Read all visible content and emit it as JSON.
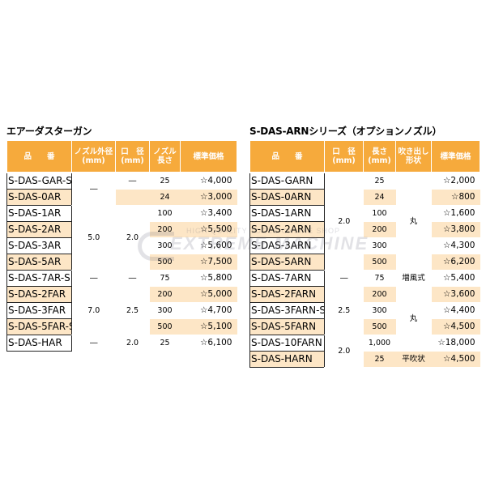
{
  "left": {
    "title": "エアーダスターガン",
    "headers": [
      "品　　番",
      "ノズル外径(mm)",
      "口　径(mm)",
      "ノズル長さ",
      "標準価格"
    ],
    "rows": [
      {
        "model": "S-DAS-GAR-S",
        "price": "☆4,000"
      },
      {
        "model": "S-DAS-0AR",
        "price": "☆3,000"
      },
      {
        "model": "S-DAS-1AR",
        "price": "☆3,400"
      },
      {
        "model": "S-DAS-2AR",
        "price": "☆5,500"
      },
      {
        "model": "S-DAS-3AR",
        "price": "☆5,600"
      },
      {
        "model": "S-DAS-5AR",
        "price": "☆7,500"
      },
      {
        "model": "S-DAS-7AR-S",
        "price": "☆5,800"
      },
      {
        "model": "S-DAS-2FAR",
        "price": "☆5,000"
      },
      {
        "model": "S-DAS-3FAR",
        "price": "☆4,700"
      },
      {
        "model": "S-DAS-5FAR-S",
        "price": "☆5,100"
      },
      {
        "model": "S-DAS-HAR",
        "price": "☆6,100"
      }
    ],
    "outer_dia": {
      "r0": "―",
      "r2": "5.0",
      "r6": "―",
      "r8": "7.0",
      "r10": "―"
    },
    "bore": {
      "r0": "―",
      "r3": "2.0",
      "r6": "―",
      "r8": "2.5",
      "r10": "2.0"
    },
    "length": [
      "25",
      "24",
      "100",
      "200",
      "300",
      "500",
      "75",
      "200",
      "300",
      "500",
      "25"
    ]
  },
  "right": {
    "title": "S-DAS-ARNシリーズ（オプションノズル）",
    "headers": [
      "品　　番",
      "口　径(mm)",
      "長さ(mm)",
      "吹き出し形状",
      "標準価格"
    ],
    "rows": [
      {
        "model": "S-DAS-GARN",
        "price": "☆2,000"
      },
      {
        "model": "S-DAS-0ARN",
        "price": "☆800"
      },
      {
        "model": "S-DAS-1ARN",
        "price": "☆1,600"
      },
      {
        "model": "S-DAS-2ARN",
        "price": "☆3,800"
      },
      {
        "model": "S-DAS-3ARN",
        "price": "☆4,300"
      },
      {
        "model": "S-DAS-5ARN",
        "price": "☆6,200"
      },
      {
        "model": "S-DAS-7ARN",
        "price": "☆5,400"
      },
      {
        "model": "S-DAS-2FARN",
        "price": "☆3,600"
      },
      {
        "model": "S-DAS-3FARN-S",
        "price": "☆4,400"
      },
      {
        "model": "S-DAS-5FARN",
        "price": "☆4,500"
      },
      {
        "model": "S-DAS-10FARN",
        "price": "☆18,000"
      },
      {
        "model": "S-DAS-HARN",
        "price": "☆4,500"
      }
    ],
    "bore": {
      "r3": "2.0",
      "r6": "―",
      "r8": "2.5",
      "r10": "2.0"
    },
    "length": [
      "25",
      "24",
      "100",
      "200",
      "300",
      "500",
      "75",
      "200",
      "300",
      "500",
      "1,000",
      "25"
    ],
    "shape": {
      "r3": "丸",
      "r6": "増風式",
      "r8": "丸",
      "r11": "平吹状"
    }
  },
  "watermark": {
    "line1": "HIGH QUALITY TOOLS ONLINE SHOP",
    "line2": "EXTREME MACHINE"
  }
}
